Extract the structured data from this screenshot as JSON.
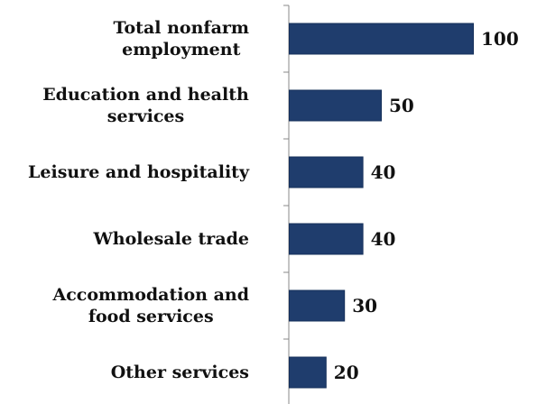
{
  "chart_data": {
    "type": "bar",
    "orientation": "horizontal",
    "categories": [
      [
        "Total nonfarm",
        "employment"
      ],
      [
        "Education and health",
        "services"
      ],
      [
        "Leisure and hospitality"
      ],
      [
        "Wholesale trade"
      ],
      [
        "Accommodation and",
        "food services"
      ],
      [
        "Other services"
      ]
    ],
    "values": [
      100,
      50,
      40,
      40,
      30,
      20
    ],
    "value_labels": [
      "100",
      "50",
      "40",
      "40",
      "30",
      "20"
    ],
    "xlim": [
      0,
      100
    ],
    "grid": false,
    "legend": "none",
    "colors": {
      "bar": "#1f3d6d",
      "bar_edge": "#16305a",
      "axis": "#888888",
      "text": "#111111"
    }
  }
}
